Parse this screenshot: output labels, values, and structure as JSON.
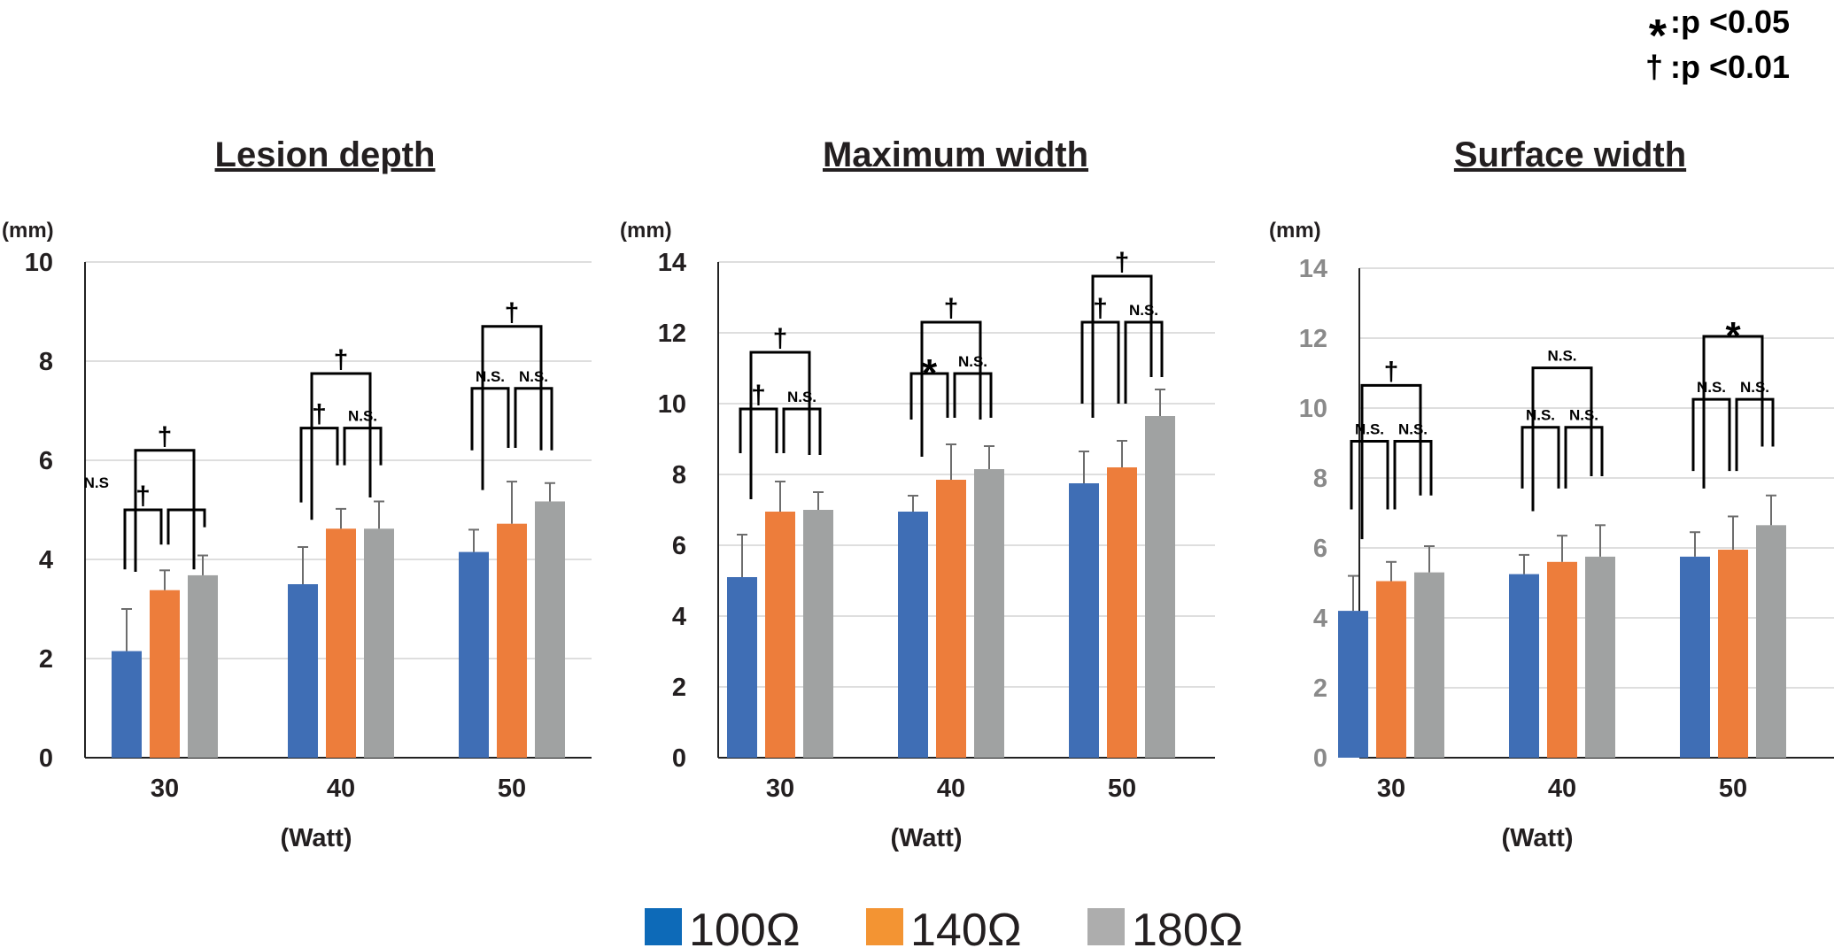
{
  "key": {
    "items": [
      {
        "symbol": "*",
        "text": ":p <0.05"
      },
      {
        "symbol": "†",
        "text": ":p <0.01"
      }
    ]
  },
  "legend": [
    {
      "label": "100Ω",
      "color": "#0d6ab8"
    },
    {
      "label": "140Ω",
      "color": "#f39433"
    },
    {
      "label": "180Ω",
      "color": "#adadad"
    }
  ],
  "chart_data": [
    {
      "type": "bar",
      "title": "Lesion depth",
      "ylabel": "(mm)",
      "xlabel": "(Watt)",
      "categories": [
        "30",
        "40",
        "50"
      ],
      "ylim": [
        0,
        10
      ],
      "yticks": [
        0,
        2,
        4,
        6,
        8,
        10
      ],
      "tick_color": "#231f20",
      "grid": true,
      "bar_colors": [
        "#3f6eb5",
        "#ed7d3b",
        "#a0a2a2"
      ],
      "series": [
        {
          "name": "100Ω",
          "values": [
            2.15,
            3.5,
            4.15
          ],
          "errors": [
            0.85,
            0.75,
            0.45
          ]
        },
        {
          "name": "140Ω",
          "values": [
            3.38,
            4.62,
            4.72
          ],
          "errors": [
            0.4,
            0.4,
            0.85
          ]
        },
        {
          "name": "180Ω",
          "values": [
            3.68,
            4.62,
            5.17
          ],
          "errors": [
            0.4,
            0.55,
            0.37
          ]
        }
      ],
      "significance": [
        {
          "category": 0,
          "pair": [
            0,
            2
          ],
          "label": "†",
          "top": 6.2,
          "legs": [
            3.75,
            3.8
          ]
        },
        {
          "category": 0,
          "pair": [
            0,
            1
          ],
          "label": "†",
          "top": 5.0,
          "legs": [
            3.8,
            4.3
          ]
        },
        {
          "category": 0,
          "pair": [
            1,
            2
          ],
          "label": "",
          "top": 5.0,
          "legs": [
            4.3,
            4.65
          ]
        },
        {
          "category": 0,
          "pair": [
            0,
            1
          ],
          "label": "N.S",
          "top": 5.45,
          "legs": null,
          "side": "left"
        },
        {
          "category": 1,
          "pair": [
            0,
            2
          ],
          "label": "†",
          "top": 7.75,
          "legs": [
            4.8,
            5.25
          ]
        },
        {
          "category": 1,
          "pair": [
            0,
            1
          ],
          "label": "†",
          "top": 6.65,
          "legs": [
            5.15,
            5.9
          ]
        },
        {
          "category": 1,
          "pair": [
            1,
            2
          ],
          "label": "N.S.",
          "top": 6.65,
          "legs": [
            5.9,
            5.9
          ]
        },
        {
          "category": 2,
          "pair": [
            0,
            2
          ],
          "label": "†",
          "top": 8.7,
          "legs": [
            5.4,
            6.2
          ]
        },
        {
          "category": 2,
          "pair": [
            0,
            1
          ],
          "label": "N.S.",
          "top": 7.45,
          "legs": [
            6.2,
            6.25
          ]
        },
        {
          "category": 2,
          "pair": [
            1,
            2
          ],
          "label": "N.S.",
          "top": 7.45,
          "legs": [
            6.25,
            6.2
          ]
        }
      ]
    },
    {
      "type": "bar",
      "title": "Maximum width",
      "ylabel": "(mm)",
      "xlabel": "(Watt)",
      "categories": [
        "30",
        "40",
        "50"
      ],
      "ylim": [
        0,
        14
      ],
      "yticks": [
        0,
        2,
        4,
        6,
        8,
        10,
        12,
        14
      ],
      "tick_color": "#231f20",
      "grid": true,
      "bar_colors": [
        "#3f6eb5",
        "#ed7d3b",
        "#a0a2a2"
      ],
      "series": [
        {
          "name": "100Ω",
          "values": [
            5.1,
            6.95,
            7.75
          ],
          "errors": [
            1.2,
            0.45,
            0.9
          ]
        },
        {
          "name": "140Ω",
          "values": [
            6.95,
            7.85,
            8.2
          ],
          "errors": [
            0.85,
            1.0,
            0.75
          ]
        },
        {
          "name": "180Ω",
          "values": [
            7.0,
            8.15,
            9.65
          ],
          "errors": [
            0.5,
            0.65,
            0.75
          ]
        }
      ],
      "significance": [
        {
          "category": 0,
          "pair": [
            0,
            2
          ],
          "label": "†",
          "top": 11.45,
          "legs": [
            7.3,
            8.55
          ]
        },
        {
          "category": 0,
          "pair": [
            0,
            1
          ],
          "label": "†",
          "top": 9.85,
          "legs": [
            8.6,
            8.6
          ]
        },
        {
          "category": 0,
          "pair": [
            1,
            2
          ],
          "label": "N.S.",
          "top": 9.85,
          "legs": [
            8.6,
            8.55
          ]
        },
        {
          "category": 1,
          "pair": [
            0,
            2
          ],
          "label": "†",
          "top": 12.3,
          "legs": [
            8.5,
            9.55
          ]
        },
        {
          "category": 1,
          "pair": [
            0,
            1
          ],
          "label": "*",
          "top": 10.85,
          "legs": [
            9.55,
            9.6
          ]
        },
        {
          "category": 1,
          "pair": [
            1,
            2
          ],
          "label": "N.S.",
          "top": 10.85,
          "legs": [
            9.6,
            9.6
          ]
        },
        {
          "category": 2,
          "pair": [
            0,
            2
          ],
          "label": "†",
          "top": 13.6,
          "legs": [
            9.6,
            10.75
          ]
        },
        {
          "category": 2,
          "pair": [
            0,
            1
          ],
          "label": "†",
          "top": 12.3,
          "legs": [
            10.0,
            10.0
          ]
        },
        {
          "category": 2,
          "pair": [
            1,
            2
          ],
          "label": "N.S.",
          "top": 12.3,
          "legs": [
            10.0,
            10.75
          ]
        }
      ]
    },
    {
      "type": "bar",
      "title": "Surface width",
      "ylabel": "(mm)",
      "xlabel": "(Watt)",
      "categories": [
        "30",
        "40",
        "50"
      ],
      "ylim": [
        0,
        14
      ],
      "yticks": [
        0,
        2,
        4,
        6,
        8,
        10,
        12,
        14
      ],
      "tick_color": "#8a8a8a",
      "grid": true,
      "bar_colors": [
        "#3f6eb5",
        "#ed7d3b",
        "#a0a2a2"
      ],
      "series": [
        {
          "name": "100Ω",
          "values": [
            4.2,
            5.25,
            5.75
          ],
          "errors": [
            1.0,
            0.55,
            0.7
          ]
        },
        {
          "name": "140Ω",
          "values": [
            5.05,
            5.6,
            5.95
          ],
          "errors": [
            0.55,
            0.75,
            0.95
          ]
        },
        {
          "name": "180Ω",
          "values": [
            5.3,
            5.75,
            6.65
          ],
          "errors": [
            0.75,
            0.9,
            0.85
          ]
        }
      ],
      "significance": [
        {
          "category": 0,
          "pair": [
            0,
            2
          ],
          "label": "†",
          "top": 10.65,
          "legs": [
            6.25,
            7.5
          ]
        },
        {
          "category": 0,
          "pair": [
            0,
            1
          ],
          "label": "N.S.",
          "top": 9.05,
          "legs": [
            7.1,
            7.1
          ]
        },
        {
          "category": 0,
          "pair": [
            1,
            2
          ],
          "label": "N.S.",
          "top": 9.05,
          "legs": [
            7.1,
            7.5
          ]
        },
        {
          "category": 1,
          "pair": [
            0,
            2
          ],
          "label": "N.S.",
          "top": 11.15,
          "legs": [
            7.05,
            8.05
          ]
        },
        {
          "category": 1,
          "pair": [
            0,
            1
          ],
          "label": "N.S.",
          "top": 9.45,
          "legs": [
            7.7,
            7.7
          ]
        },
        {
          "category": 1,
          "pair": [
            1,
            2
          ],
          "label": "N.S.",
          "top": 9.45,
          "legs": [
            7.7,
            8.05
          ]
        },
        {
          "category": 2,
          "pair": [
            0,
            2
          ],
          "label": "*",
          "top": 12.05,
          "legs": [
            7.7,
            8.9
          ]
        },
        {
          "category": 2,
          "pair": [
            0,
            1
          ],
          "label": "N.S.",
          "top": 10.25,
          "legs": [
            8.2,
            8.2
          ]
        },
        {
          "category": 2,
          "pair": [
            1,
            2
          ],
          "label": "N.S.",
          "top": 10.25,
          "legs": [
            8.2,
            8.9
          ]
        }
      ]
    }
  ]
}
